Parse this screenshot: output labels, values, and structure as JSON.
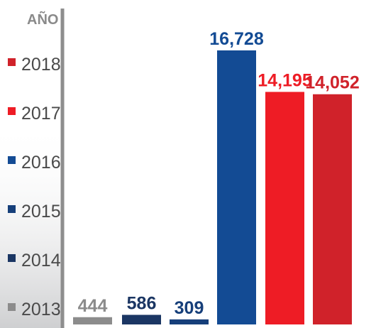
{
  "chart_data": {
    "type": "bar",
    "legend_title": "AÑO",
    "categories": [
      "2013",
      "2014",
      "2015",
      "2016",
      "2017",
      "2018"
    ],
    "values": [
      444,
      586,
      309,
      16728,
      14195,
      14052
    ],
    "value_labels": [
      "444",
      "586",
      "309",
      "16,728",
      "14,195",
      "14,052"
    ],
    "colors": [
      "#8c8c8c",
      "#1b3663",
      "#163f7a",
      "#134b94",
      "#ee1c25",
      "#d0222a"
    ],
    "label_colors": [
      "#8c8c8c",
      "#1b3663",
      "#163f7a",
      "#134b94",
      "#ee1c25",
      "#d0222a"
    ],
    "legend_order": [
      "2018",
      "2017",
      "2016",
      "2015",
      "2014",
      "2013"
    ],
    "legend_colors": [
      "#d0222a",
      "#ee1c25",
      "#134b94",
      "#163f7a",
      "#1b3663",
      "#8c8c8c"
    ],
    "legend_placement": "left",
    "grid": false
  }
}
